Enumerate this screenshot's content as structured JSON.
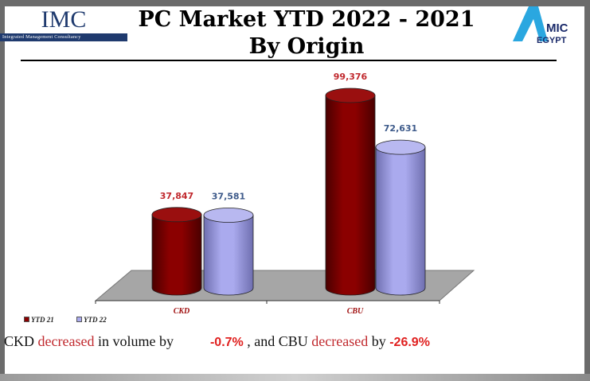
{
  "header": {
    "title": "PC Market YTD 2022 - 2021 By Origin",
    "left_logo": "IMC",
    "left_logo_sub": "Integrated Management Consultancy",
    "right_logo": "AMIC EGYPT"
  },
  "chart_data": {
    "type": "bar",
    "style": "3d-cylinder",
    "categories": [
      "CKD",
      "CBU"
    ],
    "series": [
      {
        "name": "YTD 21",
        "values": [
          37847,
          99376
        ],
        "labels": [
          "37,847",
          "99,376"
        ],
        "color": "#8b0000"
      },
      {
        "name": "YTD 22",
        "values": [
          37581,
          72631
        ],
        "labels": [
          "37,581",
          "72,631"
        ],
        "color": "#aaaaee"
      }
    ],
    "label_colors": [
      "#c0282d",
      "#3d5a8a"
    ],
    "legend": "bottom-left",
    "ylim": [
      0,
      99376
    ],
    "grid": false
  },
  "summary": {
    "p1": "CKD ",
    "w1": "decreased",
    "p2": " in volume by",
    "v1": "-0.7%",
    "p3": " , and CBU ",
    "w2": "decreased",
    "p4": " by ",
    "v2": "-26.9%"
  }
}
